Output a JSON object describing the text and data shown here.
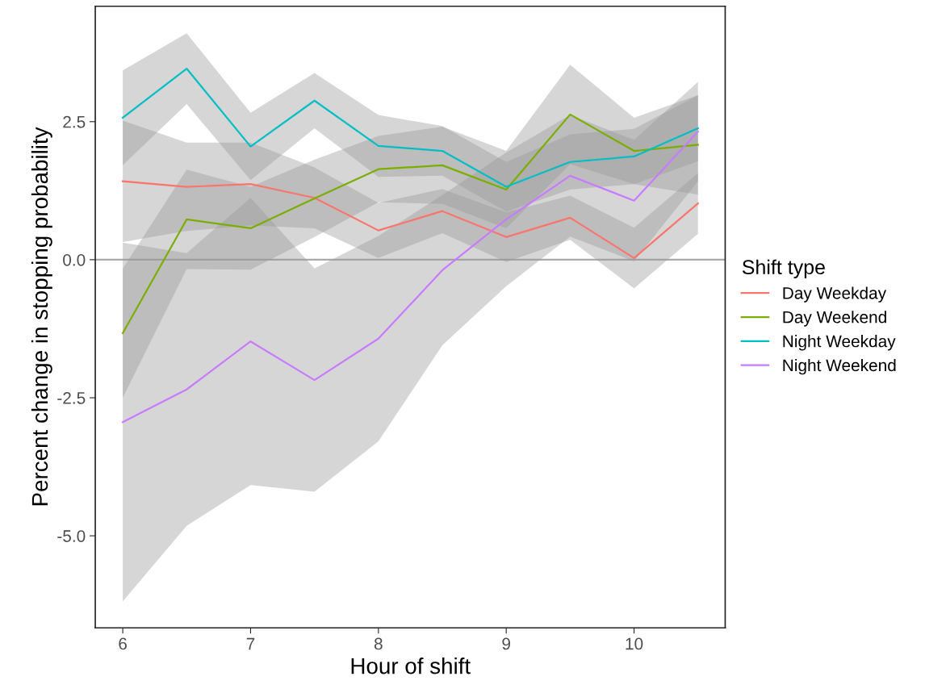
{
  "chart_data": {
    "type": "line",
    "xlabel": "Hour of shift",
    "ylabel": "Percent change in stopping probability",
    "legend_title": "Shift type",
    "legend": "right",
    "grid": false,
    "x": [
      6,
      6.5,
      7,
      7.5,
      8,
      8.5,
      9,
      9.5,
      10,
      10.5
    ],
    "xlim": [
      5.785,
      10.713
    ],
    "xticks": [
      6,
      7,
      8,
      9,
      10
    ],
    "ylim": [
      -6.667,
      4.59
    ],
    "yticks": [
      {
        "value": -5,
        "label": "-5.0"
      },
      {
        "value": -2.5,
        "label": "-2.5"
      },
      {
        "value": 0,
        "label": "0.0"
      },
      {
        "value": 2.5,
        "label": "2.5"
      }
    ],
    "ref_lines": [
      {
        "axis": "y",
        "value": 0,
        "color": "#aaaaaa"
      }
    ],
    "series": [
      {
        "name": "Day Weekday",
        "color": "#f8766d",
        "values": [
          1.42,
          1.32,
          1.37,
          1.12,
          0.53,
          0.88,
          0.41,
          0.76,
          0.03,
          1.02
        ],
        "lower": [
          0.32,
          0.52,
          0.62,
          0.57,
          0.03,
          0.48,
          -0.04,
          0.36,
          -0.52,
          0.47
        ],
        "upper": [
          2.52,
          2.12,
          2.12,
          1.67,
          1.03,
          1.28,
          0.86,
          1.16,
          0.58,
          1.57
        ]
      },
      {
        "name": "Day Weekend",
        "color": "#7cae00",
        "values": [
          -1.33,
          0.73,
          0.57,
          1.11,
          1.64,
          1.71,
          1.27,
          2.63,
          1.97,
          2.08
        ],
        "lower": [
          -2.5,
          -0.17,
          -0.18,
          0.41,
          1.04,
          1.01,
          0.57,
          1.73,
          1.37,
          1.18
        ],
        "upper": [
          -0.16,
          1.63,
          1.32,
          1.81,
          2.24,
          2.41,
          1.97,
          3.53,
          2.57,
          2.98
        ]
      },
      {
        "name": "Night Weekday",
        "color": "#00bfc4",
        "values": [
          2.57,
          3.46,
          2.05,
          2.88,
          2.06,
          1.97,
          1.32,
          1.77,
          1.87,
          2.38
        ],
        "lower": [
          1.71,
          2.82,
          1.44,
          2.38,
          1.5,
          1.52,
          0.87,
          1.27,
          1.37,
          1.78
        ],
        "upper": [
          3.43,
          4.1,
          2.66,
          3.38,
          2.62,
          2.42,
          1.77,
          2.27,
          2.37,
          2.98
        ]
      },
      {
        "name": "Night Weekend",
        "color": "#c77cff",
        "values": [
          -2.94,
          -2.35,
          -1.48,
          -2.18,
          -1.43,
          -0.19,
          0.73,
          1.52,
          1.07,
          2.32
        ],
        "lower": [
          -6.19,
          -4.82,
          -4.08,
          -4.2,
          -3.29,
          -1.55,
          -0.48,
          0.42,
          -0.03,
          1.42
        ],
        "upper": [
          0.31,
          0.12,
          1.12,
          -0.16,
          0.43,
          1.17,
          1.94,
          2.62,
          2.17,
          3.22
        ]
      }
    ]
  }
}
